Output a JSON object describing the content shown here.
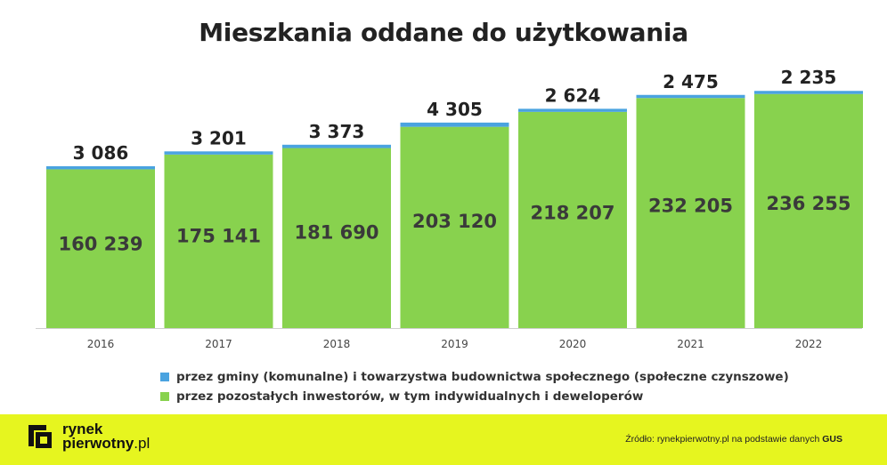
{
  "chart_data": {
    "type": "bar",
    "stacked": true,
    "title": "Mieszkania oddane do użytkowania",
    "categories": [
      "2016",
      "2017",
      "2018",
      "2019",
      "2020",
      "2021",
      "2022"
    ],
    "series": [
      {
        "name": "przez pozostałych inwestorów, w tym indywidualnych i deweloperów",
        "values": [
          160239,
          175141,
          181690,
          203120,
          218207,
          232205,
          236255
        ],
        "labels": [
          "160 239",
          "175 141",
          "181 690",
          "203 120",
          "218 207",
          "232 205",
          "236 255"
        ],
        "color": "#88d24e"
      },
      {
        "name": "przez gminy (komunalne) i towarzystwa budownictwa społecznego (społeczne czynszowe)",
        "values": [
          3086,
          3201,
          3373,
          4305,
          2624,
          2475,
          2235
        ],
        "labels": [
          "3 086",
          "3 201",
          "3 373",
          "4 305",
          "2 624",
          "2 475",
          "2 235"
        ],
        "color": "#4aa3e0"
      }
    ],
    "ylim": [
      0,
      240000
    ],
    "grid": false,
    "legend_position": "bottom"
  },
  "footer": {
    "logo_line1": "rynek",
    "logo_line2": "pierwotny",
    "logo_domain": ".pl",
    "source_text": "Źródło: rynekpierwotny.pl na podstawie danych ",
    "source_bold": "GUS",
    "background": "#e6f51f"
  }
}
